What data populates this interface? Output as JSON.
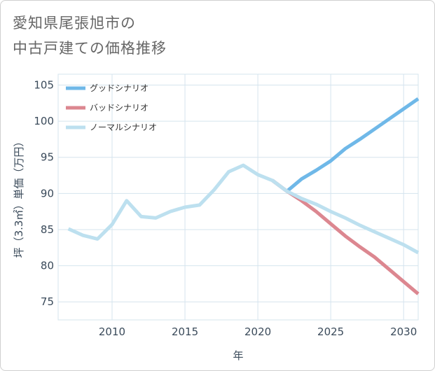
{
  "title": {
    "line1": "愛知県尾張旭市の",
    "line2": "中古戸建ての価格推移"
  },
  "chart_data": {
    "type": "line",
    "xlabel": "年",
    "ylabel": "坪（3.3㎡）単価（万円）",
    "xlim": [
      2006.3,
      2031
    ],
    "ylim": [
      72.5,
      106.5
    ],
    "xticks": [
      2010,
      2015,
      2020,
      2025,
      2030
    ],
    "yticks": [
      75,
      80,
      85,
      90,
      95,
      100,
      105
    ],
    "grid": true,
    "legend_position": "top-left",
    "series": [
      {
        "name": "グッドシナリオ",
        "color": "#6fb8e8",
        "x": [
          2021,
          2022,
          2023,
          2024,
          2025,
          2026,
          2027,
          2028,
          2029,
          2030,
          2031
        ],
        "y": [
          91.8,
          90.3,
          92.0,
          93.2,
          94.5,
          96.2,
          97.5,
          98.9,
          100.3,
          101.7,
          103.1
        ]
      },
      {
        "name": "バッドシナリオ",
        "color": "#dc8790",
        "x": [
          2021,
          2022,
          2023,
          2024,
          2025,
          2026,
          2027,
          2028,
          2029,
          2030,
          2031
        ],
        "y": [
          91.8,
          90.3,
          89.0,
          87.5,
          85.8,
          84.1,
          82.6,
          81.2,
          79.5,
          77.8,
          76.1
        ]
      },
      {
        "name": "ノーマルシナリオ",
        "color": "#bde0ef",
        "x": [
          2007,
          2008,
          2009,
          2010,
          2011,
          2012,
          2013,
          2014,
          2015,
          2016,
          2017,
          2018,
          2019,
          2020,
          2021,
          2022,
          2023,
          2024,
          2025,
          2026,
          2027,
          2028,
          2029,
          2030,
          2031
        ],
        "y": [
          85.1,
          84.2,
          83.7,
          85.7,
          89.0,
          86.8,
          86.6,
          87.5,
          88.1,
          88.4,
          90.5,
          93.0,
          93.9,
          92.6,
          91.8,
          90.3,
          89.3,
          88.5,
          87.5,
          86.6,
          85.6,
          84.7,
          83.8,
          82.9,
          81.8
        ]
      }
    ]
  }
}
